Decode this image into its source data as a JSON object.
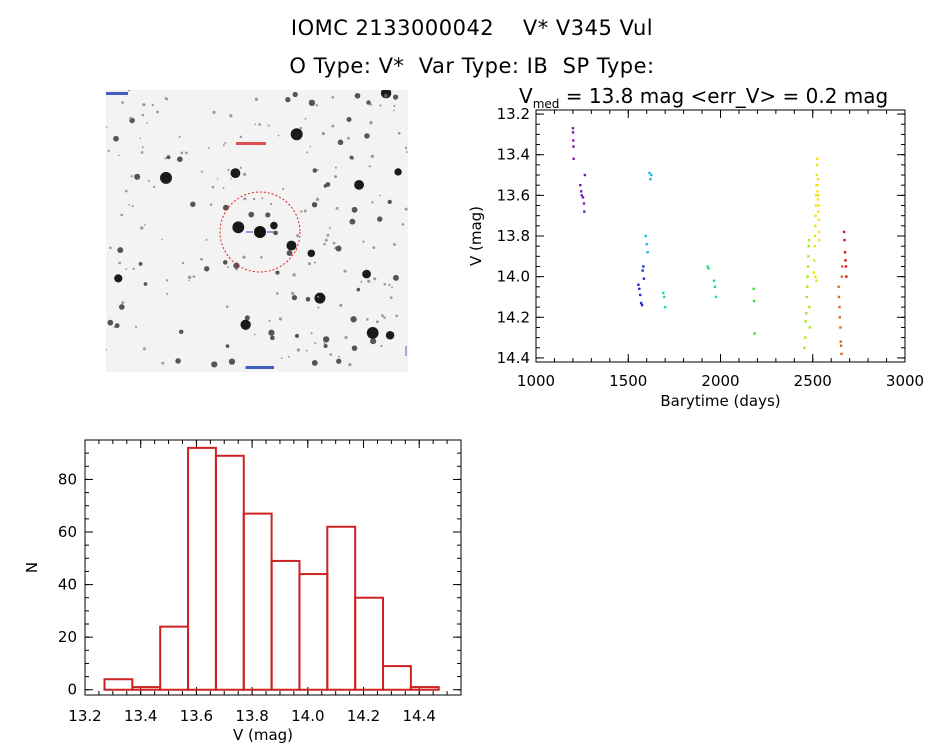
{
  "header": {
    "line1": "IOMC 2133000042    V* V345 Vul",
    "line2": "O Type: V*  Var Type: IB  SP Type:",
    "line3_v": "V",
    "line3_sub": "med",
    "line3_rest": " = 13.8 mag <err_V> = 0.2 mag"
  },
  "chart_data": [
    {
      "type": "scatter",
      "title": "",
      "xlabel": "Barytime (days)",
      "ylabel": "V (mag)",
      "xlim": [
        1000,
        3000
      ],
      "ylim": [
        14.42,
        13.18
      ],
      "y_inverted": true,
      "xticks": [
        1000,
        1500,
        2000,
        2500,
        3000
      ],
      "yticks": [
        13.2,
        13.4,
        13.6,
        13.8,
        14.0,
        14.2,
        14.4
      ],
      "ytick_labels": [
        "13.2",
        "13.4",
        "13.6",
        "13.8",
        "14.0",
        "14.2",
        "14.4"
      ],
      "grid": false,
      "legend": "none",
      "series": [
        {
          "color": "#7a1fa0",
          "points": [
            [
              1200,
              13.27
            ],
            [
              1201,
              13.29
            ],
            [
              1202,
              13.33
            ],
            [
              1203,
              13.36
            ],
            [
              1204,
              13.42
            ],
            [
              1240,
              13.55
            ],
            [
              1245,
              13.58
            ],
            [
              1248,
              13.6
            ],
            [
              1255,
              13.61
            ],
            [
              1260,
              13.64
            ],
            [
              1262,
              13.68
            ],
            [
              1265,
              13.5
            ]
          ]
        },
        {
          "color": "#1a2fc8",
          "points": [
            [
              1555,
              14.04
            ],
            [
              1560,
              14.06
            ],
            [
              1565,
              14.09
            ],
            [
              1570,
              14.13
            ],
            [
              1575,
              14.14
            ],
            [
              1578,
              13.97
            ],
            [
              1582,
              13.95
            ],
            [
              1585,
              14.01
            ]
          ]
        },
        {
          "color": "#1ab4e6",
          "points": [
            [
              1595,
              13.8
            ],
            [
              1600,
              13.84
            ],
            [
              1605,
              13.88
            ],
            [
              1615,
              13.49
            ],
            [
              1620,
              13.52
            ],
            [
              1625,
              13.5
            ]
          ]
        },
        {
          "color": "#22d4b0",
          "points": [
            [
              1690,
              14.08
            ],
            [
              1695,
              14.1
            ],
            [
              1700,
              14.15
            ]
          ]
        },
        {
          "color": "#20e080",
          "points": [
            [
              1930,
              13.95
            ],
            [
              1935,
              13.96
            ],
            [
              1965,
              14.02
            ],
            [
              1970,
              14.05
            ],
            [
              1975,
              14.1
            ]
          ]
        },
        {
          "color": "#30e030",
          "points": [
            [
              2180,
              14.06
            ],
            [
              2182,
              14.12
            ],
            [
              2185,
              14.28
            ]
          ]
        },
        {
          "color": "#a8e818",
          "points": [
            [
              2455,
              14.35
            ],
            [
              2460,
              14.3
            ],
            [
              2462,
              14.22
            ],
            [
              2465,
              14.18
            ],
            [
              2468,
              14.1
            ],
            [
              2470,
              14.05
            ],
            [
              2472,
              14.0
            ],
            [
              2474,
              13.95
            ],
            [
              2476,
              13.9
            ],
            [
              2478,
              13.85
            ],
            [
              2480,
              13.82
            ],
            [
              2482,
              14.15
            ],
            [
              2484,
              14.25
            ]
          ]
        },
        {
          "color": "#f2e010",
          "points": [
            [
              2505,
              13.98
            ],
            [
              2508,
              13.92
            ],
            [
              2510,
              13.85
            ],
            [
              2512,
              13.8
            ],
            [
              2514,
              13.75
            ],
            [
              2515,
              13.7
            ],
            [
              2517,
              13.65
            ],
            [
              2518,
              13.6
            ],
            [
              2520,
              13.55
            ],
            [
              2522,
              13.5
            ],
            [
              2523,
              13.45
            ],
            [
              2525,
              13.42
            ],
            [
              2526,
              13.58
            ],
            [
              2528,
              13.62
            ],
            [
              2530,
              13.68
            ],
            [
              2532,
              13.72
            ],
            [
              2534,
              13.78
            ],
            [
              2536,
              13.82
            ],
            [
              2515,
              14.0
            ],
            [
              2520,
              14.02
            ],
            [
              2525,
              13.55
            ],
            [
              2528,
              13.52
            ],
            [
              2530,
              13.6
            ],
            [
              2533,
              13.65
            ]
          ]
        },
        {
          "color": "#e06818",
          "points": [
            [
              2640,
              14.05
            ],
            [
              2642,
              14.1
            ],
            [
              2645,
              14.15
            ],
            [
              2647,
              14.2
            ],
            [
              2650,
              14.25
            ],
            [
              2652,
              14.32
            ],
            [
              2654,
              14.34
            ],
            [
              2656,
              14.38
            ],
            [
              2658,
              14.0
            ],
            [
              2660,
              13.95
            ]
          ]
        },
        {
          "color": "#c81818",
          "points": [
            [
              2670,
              13.78
            ],
            [
              2672,
              13.82
            ],
            [
              2675,
              13.88
            ],
            [
              2678,
              13.92
            ],
            [
              2680,
              13.95
            ],
            [
              2682,
              14.0
            ]
          ]
        }
      ]
    },
    {
      "type": "bar",
      "title": "",
      "xlabel": "V (mag)",
      "ylabel": "N",
      "xlim": [
        13.2,
        14.55
      ],
      "ylim": [
        -2,
        95
      ],
      "xticks": [
        13.2,
        13.4,
        13.6,
        13.8,
        14.0,
        14.2,
        14.4
      ],
      "xtick_labels": [
        "13.2",
        "13.4",
        "13.6",
        "13.8",
        "14.0",
        "14.2",
        "14.4"
      ],
      "yticks": [
        0,
        20,
        40,
        60,
        80
      ],
      "ytick_labels": [
        "0",
        "20",
        "40",
        "60",
        "80"
      ],
      "bin_width": 0.1,
      "bins": [
        {
          "x0": 13.27,
          "value": 4
        },
        {
          "x0": 13.37,
          "value": 1
        },
        {
          "x0": 13.47,
          "value": 24
        },
        {
          "x0": 13.57,
          "value": 92
        },
        {
          "x0": 13.67,
          "value": 89
        },
        {
          "x0": 13.77,
          "value": 67
        },
        {
          "x0": 13.87,
          "value": 49
        },
        {
          "x0": 13.97,
          "value": 44
        },
        {
          "x0": 14.07,
          "value": 62
        },
        {
          "x0": 14.17,
          "value": 35
        },
        {
          "x0": 14.27,
          "value": 9
        },
        {
          "x0": 14.37,
          "value": 1
        }
      ],
      "bar_color": "#cc2222",
      "grid": false,
      "legend": "none"
    }
  ]
}
